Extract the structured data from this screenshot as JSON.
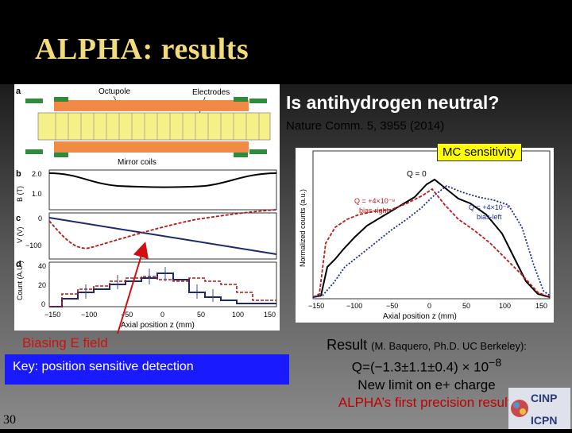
{
  "slide": {
    "title": "ALPHA: results",
    "page_number": "30"
  },
  "right_header": {
    "question": "Is antihydrogen neutral?",
    "reference": "Nature Comm. 5, 3955 (2014)"
  },
  "mc_sensitivity": "MC sensitivity",
  "left_annotations": {
    "biasing_label": "Biasing E field",
    "key_label": "Key: position sensitive detection"
  },
  "result": {
    "label": "Result",
    "attribution": "(M. Baquero, Ph.D. UC Berkeley):",
    "q_value": "Q=(−1.3±1.1±0.4) × 10",
    "q_exponent": "−8",
    "new_limit": "New limit on e+ charge",
    "first_result": "ALPHA’s first precision result!"
  },
  "figure_left": {
    "panel_a": "a",
    "panel_b": "b",
    "panel_c": "c",
    "panel_d": "d",
    "octupole": "Octupole",
    "electrodes": "Electrodes",
    "mirror_coils": "Mirror coils",
    "b_ylabel": "B (T)",
    "v_ylabel": "V (V)",
    "count_ylabel": "Count (A.U.)",
    "b_ticks": [
      "2.0",
      "1.0"
    ],
    "v_ticks": [
      "0",
      "−100"
    ],
    "count_ticks": [
      "40",
      "20",
      "0"
    ],
    "x_ticks": [
      "−150",
      "−100",
      "−50",
      "0",
      "50",
      "100",
      "150"
    ],
    "xlabel": "Axial position z (mm)"
  },
  "figure_right": {
    "ylabel": "Normalized counts (a.u.)",
    "xlabel": "Axial position z (mm)",
    "x_ticks": [
      "−150",
      "−100",
      "−50",
      "0",
      "50",
      "100",
      "150"
    ],
    "q0": "Q = 0",
    "q_neg": "Q = +4×10⁻⁸",
    "q_neg_sub": "bias-right",
    "q_pos": "Q = +4×10⁻⁸",
    "q_pos_sub": "bias-left"
  },
  "logo": {
    "top": "CINP",
    "bottom": "ICPN"
  }
}
